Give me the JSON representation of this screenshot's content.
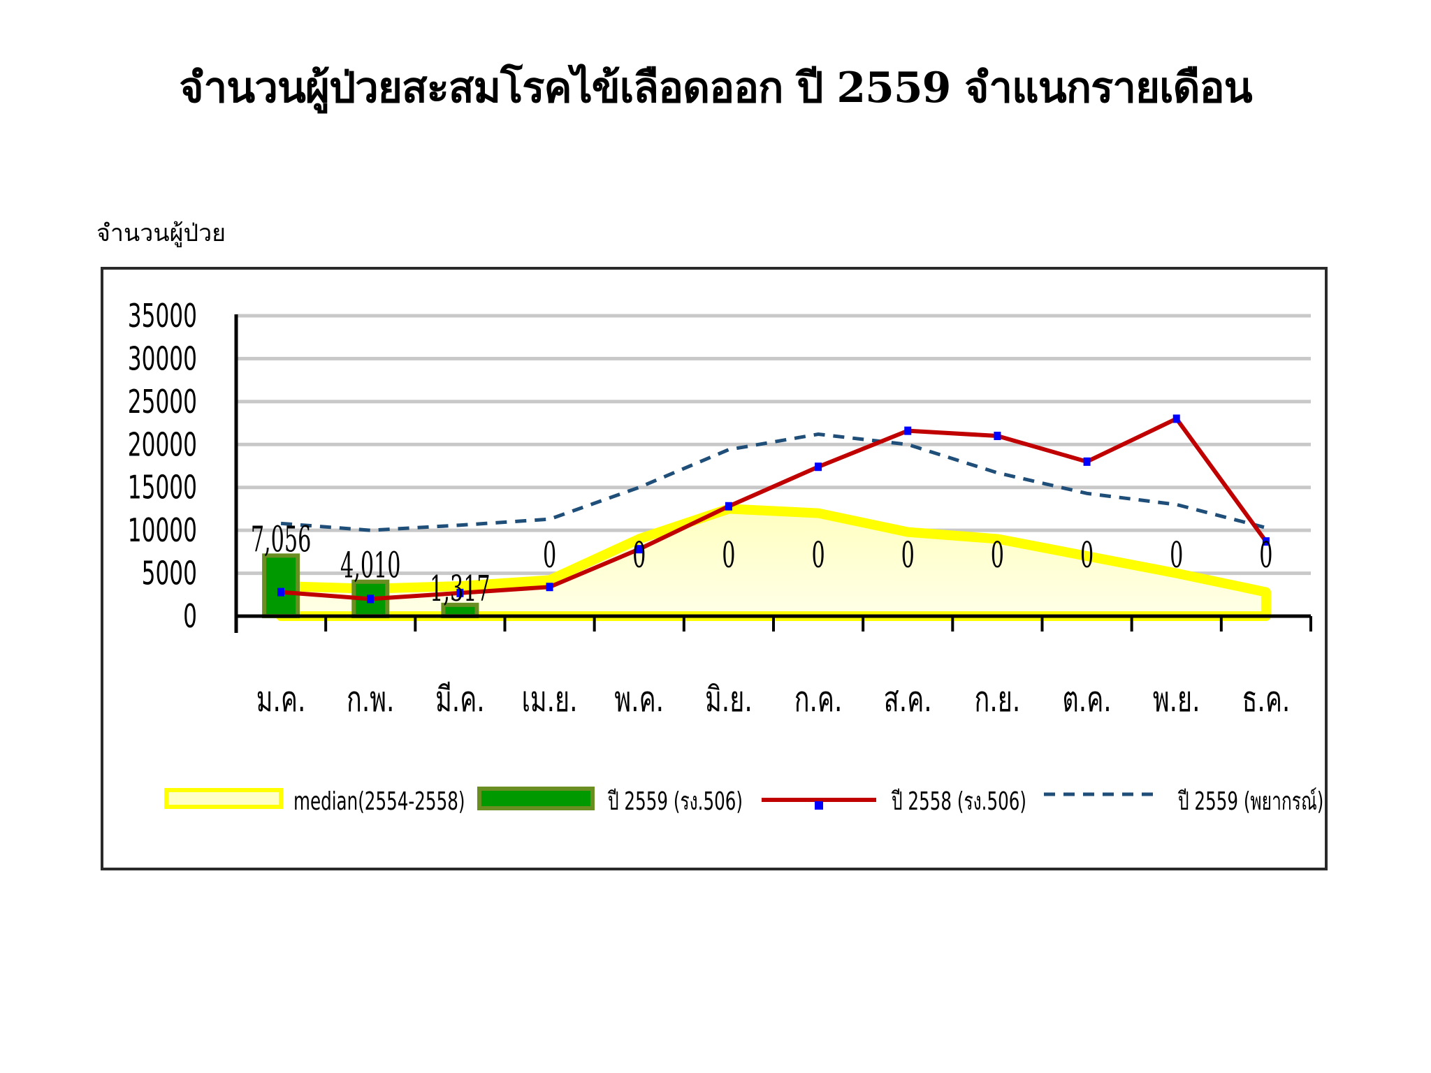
{
  "title": "จำนวนผู้ป่วยสะสมโรคไข้เลือดออก ปี 2559 จำแนกรายเดือน",
  "y_unit_label": "จำนวนผู้ป่วย",
  "chart_data": {
    "type": "bar",
    "categories": [
      "ม.ค.",
      "ก.พ.",
      "มี.ค.",
      "เม.ย.",
      "พ.ค.",
      "มิ.ย.",
      "ก.ค.",
      "ส.ค.",
      "ก.ย.",
      "ต.ค.",
      "พ.ย.",
      "ธ.ค."
    ],
    "ylim": [
      0,
      35000
    ],
    "yticks": [
      "0",
      "5000",
      "10000",
      "15000",
      "20000",
      "25000",
      "30000",
      "35000"
    ],
    "grid": true,
    "legend_position": "bottom",
    "series": [
      {
        "name": "median(2554-2558)",
        "kind": "area",
        "color": "#ffff00",
        "values": [
          3500,
          3200,
          3500,
          4200,
          9000,
          12500,
          12000,
          9800,
          9000,
          7000,
          5000,
          2800
        ]
      },
      {
        "name": "ปี 2559 (รง.506)",
        "kind": "bar",
        "color": "#009900",
        "values": [
          7056,
          4010,
          1317,
          0,
          0,
          0,
          0,
          0,
          0,
          0,
          0,
          0
        ],
        "labels": [
          "7,056",
          "4,010",
          "1,317",
          "0",
          "0",
          "0",
          "0",
          "0",
          "0",
          "0",
          "0",
          "0"
        ]
      },
      {
        "name": "ปี 2558 (รง.506)",
        "kind": "line",
        "color": "#c00000",
        "marker_color": "#0000ff",
        "values": [
          2800,
          2000,
          2700,
          3400,
          7800,
          12800,
          17400,
          21600,
          21000,
          18000,
          23000,
          8700
        ]
      },
      {
        "name": "ปี 2559 (พยากรณ์)",
        "kind": "dashed-line",
        "color": "#1f4e79",
        "values": [
          10800,
          10000,
          10600,
          11300,
          15000,
          19400,
          21200,
          20000,
          16700,
          14300,
          13000,
          10300
        ]
      }
    ]
  }
}
